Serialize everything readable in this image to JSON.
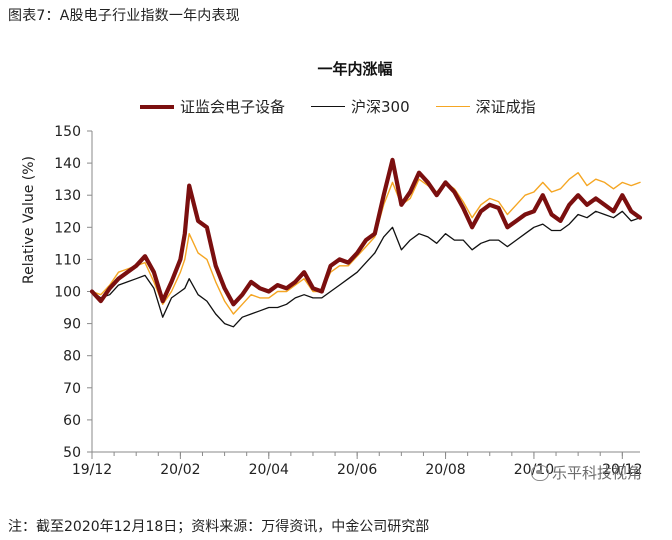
{
  "caption": "图表7：A股电子行业指数一年内表现",
  "footnote": "注：截至2020年12月18日；资料来源：万得资讯，中金公司研究部",
  "watermark": "乐平科技视角",
  "colors": {
    "electronics": "#7b0f0f",
    "hs300": "#111111",
    "szci": "#f5a623",
    "axis": "#8a8a8a"
  },
  "chart_data": {
    "type": "line",
    "title": "一年内涨幅",
    "ylabel": "Relative Value (%)",
    "xlabel": "",
    "ylim": [
      50,
      150
    ],
    "yticks": [
      50,
      60,
      70,
      80,
      90,
      100,
      110,
      120,
      130,
      140,
      150
    ],
    "xlim": [
      0,
      12.4
    ],
    "xticks": [
      {
        "x": 0,
        "label": "19/12"
      },
      {
        "x": 2,
        "label": "20/02"
      },
      {
        "x": 4,
        "label": "20/04"
      },
      {
        "x": 6,
        "label": "20/06"
      },
      {
        "x": 8,
        "label": "20/08"
      },
      {
        "x": 10,
        "label": "20/10"
      },
      {
        "x": 12,
        "label": "20/12"
      }
    ],
    "x": [
      0.0,
      0.2,
      0.4,
      0.6,
      0.8,
      1.0,
      1.2,
      1.4,
      1.6,
      1.8,
      2.0,
      2.1,
      2.2,
      2.4,
      2.6,
      2.8,
      3.0,
      3.2,
      3.4,
      3.6,
      3.8,
      4.0,
      4.2,
      4.4,
      4.6,
      4.8,
      5.0,
      5.2,
      5.4,
      5.6,
      5.8,
      6.0,
      6.2,
      6.4,
      6.6,
      6.8,
      7.0,
      7.2,
      7.4,
      7.6,
      7.8,
      8.0,
      8.2,
      8.4,
      8.6,
      8.8,
      9.0,
      9.2,
      9.4,
      9.6,
      9.8,
      10.0,
      10.2,
      10.4,
      10.6,
      10.8,
      11.0,
      11.2,
      11.4,
      11.6,
      11.8,
      12.0,
      12.2,
      12.4
    ],
    "series": [
      {
        "name": "证监会电子设备",
        "values": [
          100,
          97,
          101,
          104,
          106,
          108,
          111,
          106,
          97,
          103,
          110,
          118,
          133,
          122,
          120,
          108,
          101,
          96,
          99,
          103,
          101,
          100,
          102,
          101,
          103,
          106,
          101,
          100,
          108,
          110,
          109,
          112,
          116,
          118,
          130,
          141,
          127,
          131,
          137,
          134,
          130,
          134,
          131,
          126,
          120,
          125,
          127,
          126,
          120,
          122,
          124,
          125,
          130,
          124,
          122,
          127,
          130,
          127,
          129,
          127,
          125,
          130,
          125,
          123
        ]
      },
      {
        "name": "沪深300",
        "values": [
          100,
          98,
          99,
          102,
          103,
          104,
          105,
          101,
          92,
          98,
          100,
          101,
          104,
          99,
          97,
          93,
          90,
          89,
          92,
          93,
          94,
          95,
          95,
          96,
          98,
          99,
          98,
          98,
          100,
          102,
          104,
          106,
          109,
          112,
          117,
          120,
          113,
          116,
          118,
          117,
          115,
          118,
          116,
          116,
          113,
          115,
          116,
          116,
          114,
          116,
          118,
          120,
          121,
          119,
          119,
          121,
          124,
          123,
          125,
          124,
          123,
          125,
          122,
          123
        ]
      },
      {
        "name": "深证成指",
        "values": [
          100,
          99,
          102,
          106,
          107,
          108,
          109,
          103,
          96,
          100,
          106,
          110,
          118,
          112,
          110,
          103,
          97,
          93,
          96,
          99,
          98,
          98,
          100,
          100,
          102,
          104,
          100,
          100,
          106,
          108,
          108,
          111,
          114,
          117,
          127,
          134,
          127,
          129,
          135,
          133,
          131,
          134,
          132,
          128,
          123,
          127,
          129,
          128,
          124,
          127,
          130,
          131,
          134,
          131,
          132,
          135,
          137,
          133,
          135,
          134,
          132,
          134,
          133,
          134
        ]
      }
    ],
    "legend_position": "top",
    "grid": false
  }
}
